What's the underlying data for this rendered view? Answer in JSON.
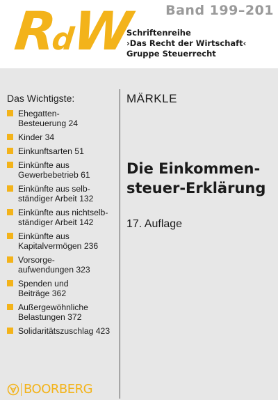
{
  "logo": {
    "big": "R",
    "small": "d",
    "big2": "W"
  },
  "band": "Band 199–201",
  "series": {
    "line1": "Schriftenreihe",
    "line2": "›Das Recht der Wirtschaft‹",
    "line3": "Gruppe Steuerrecht"
  },
  "toc": {
    "title": "Das Wichtigste:",
    "items": [
      "Ehegatten-\nBesteuerung  24",
      "Kinder  34",
      "Einkunftsarten  51",
      "Einkünfte aus\nGewerbebetrieb  61",
      "Einkünfte aus selb-\nständiger Arbeit  132",
      "Einkünfte aus nichtselb-\nständiger Arbeit  142",
      "Einkünfte aus\nKapitalvermögen  236",
      "Vorsorge-\naufwendungen  323",
      "Spenden und\nBeiträge  362",
      "Außergewöhnliche\nBelastungen  372",
      "Solidaritätszuschlag  423"
    ]
  },
  "book": {
    "author": "MÄRKLE",
    "title_line1": "Die Einkommen-",
    "title_line2": "steuer-Erklärung",
    "edition": "17. Auflage"
  },
  "publisher": {
    "name": "BOORBERG",
    "icon": "boorberg-logo-icon"
  },
  "colors": {
    "accent": "#f3b31a",
    "panel": "#e7e7e7",
    "band_text": "#9a9a9a"
  }
}
